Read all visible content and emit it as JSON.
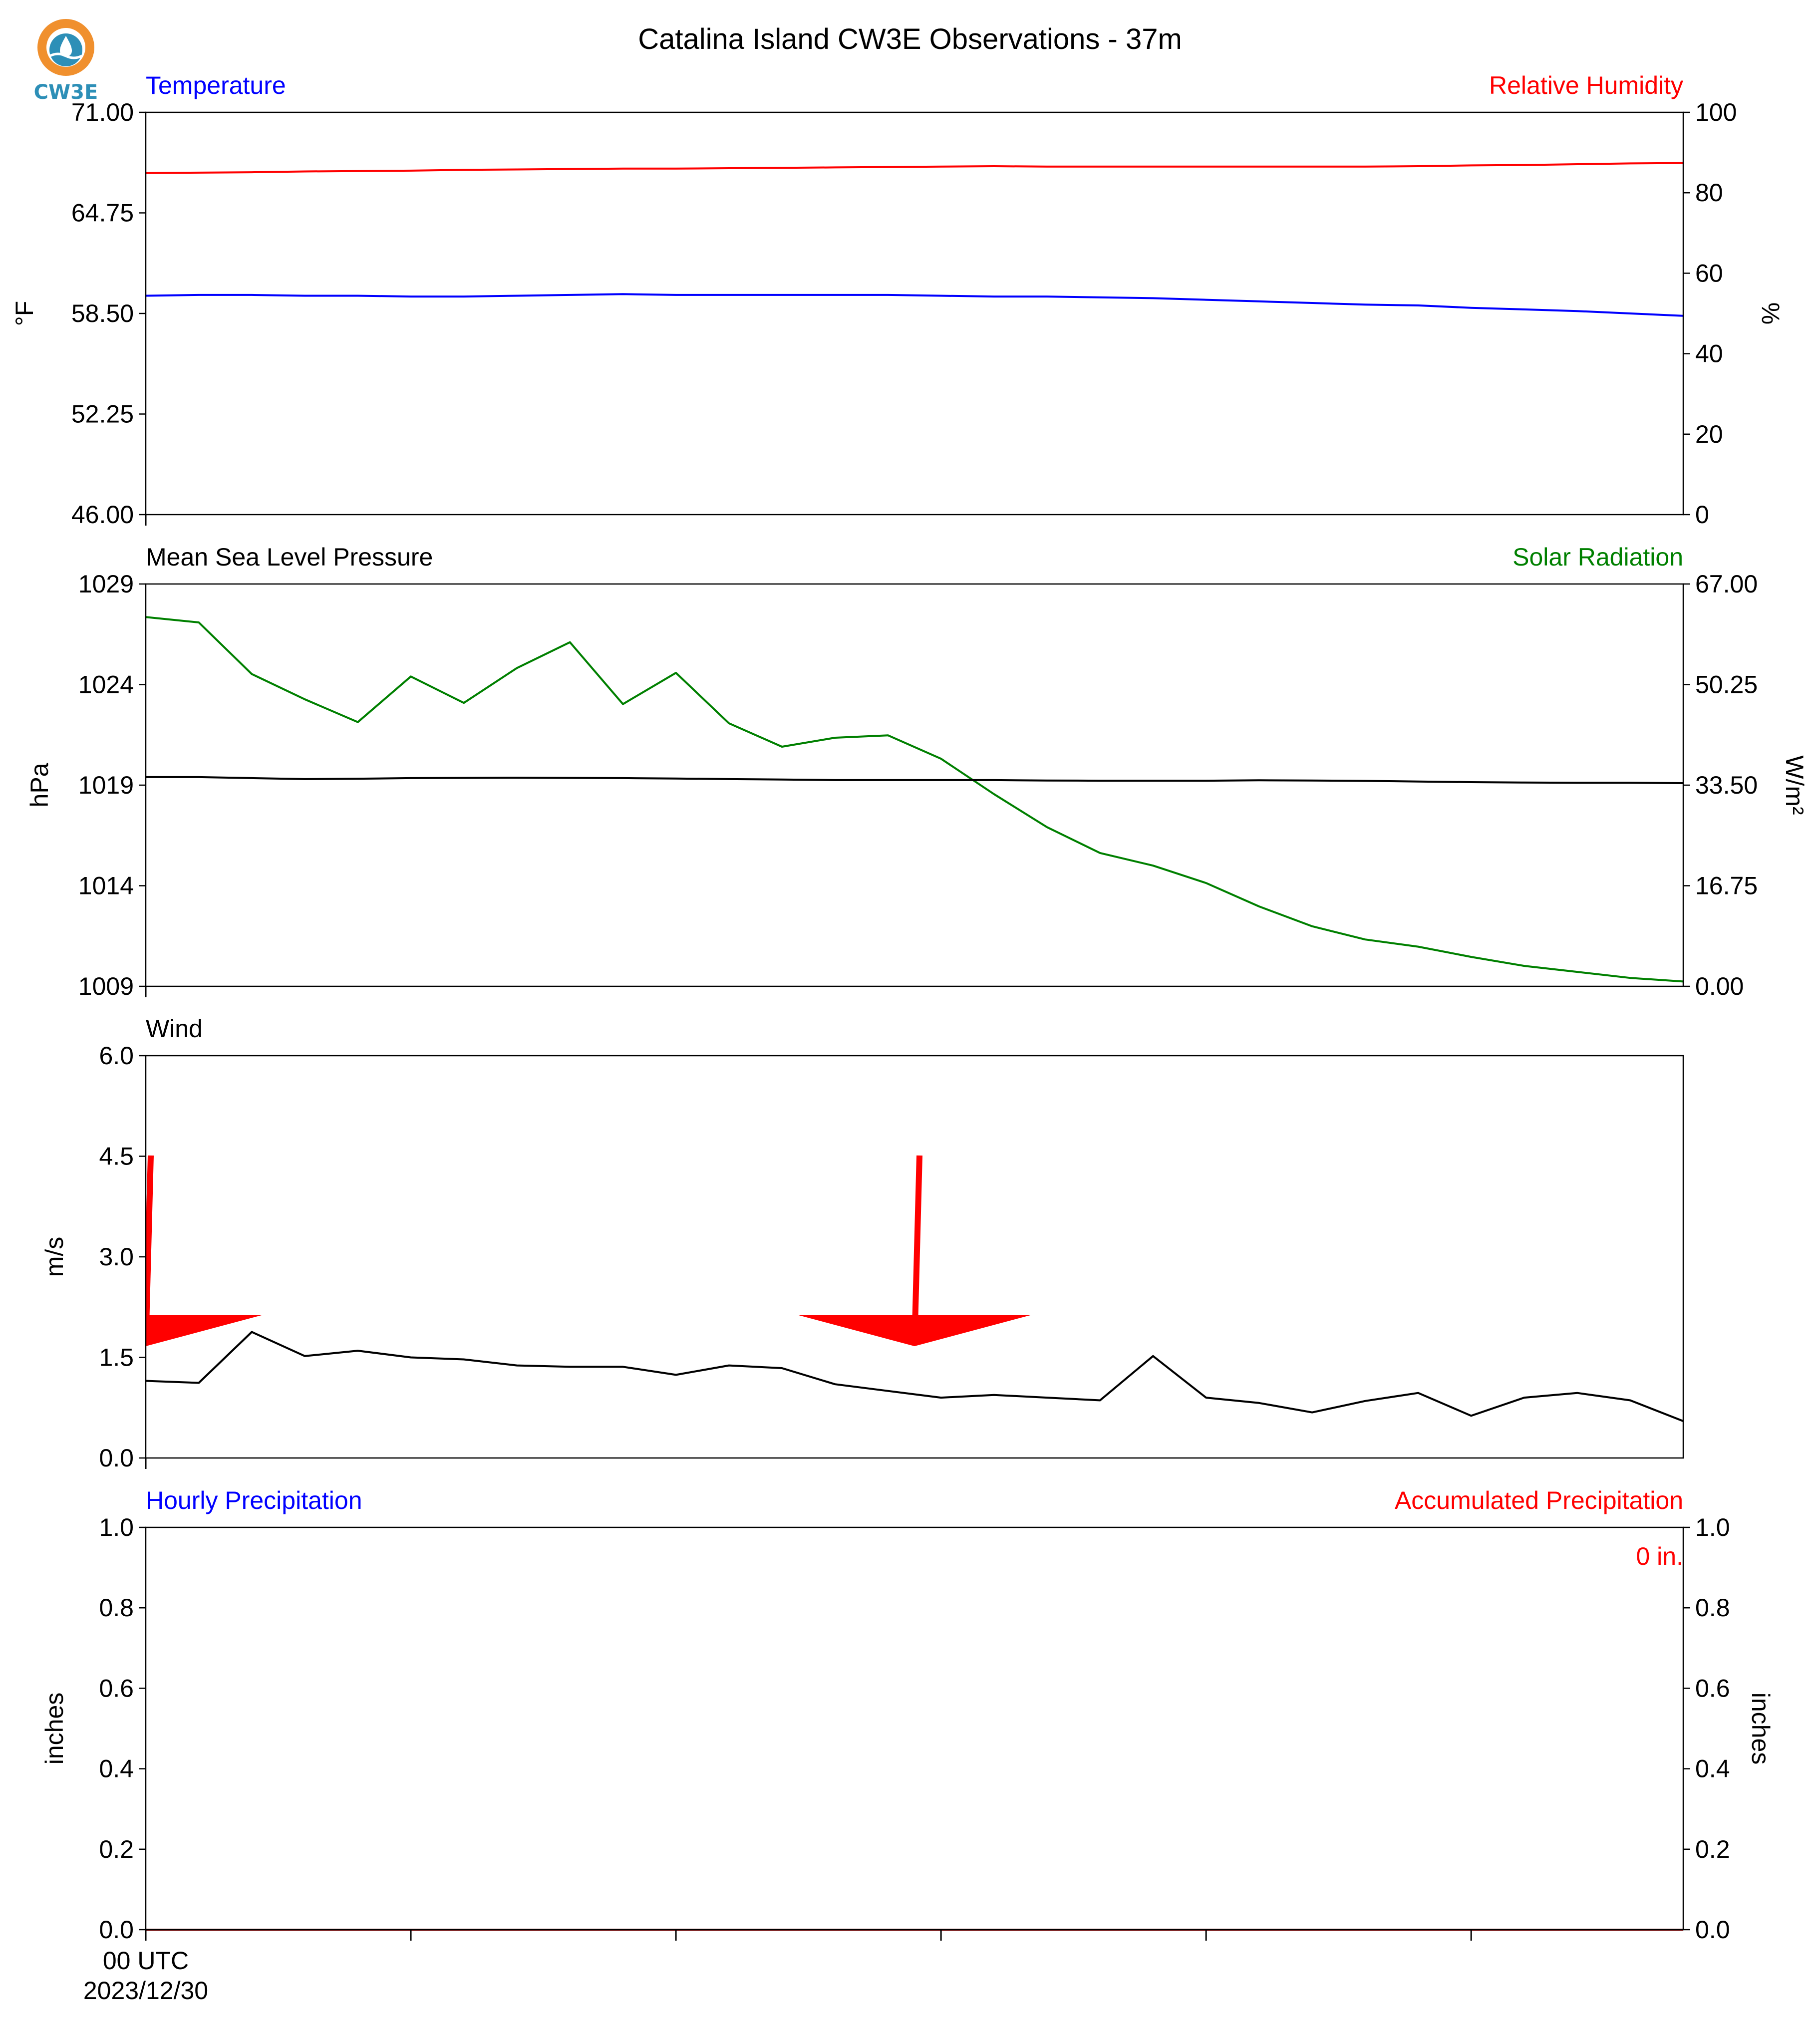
{
  "figure_title": "Catalina Island CW3E Observations - 37m",
  "logo": {
    "text": "CW3E",
    "colors": {
      "ring": "#f0902e",
      "drop": "#2d8fb7",
      "text": "#2d8fb7"
    }
  },
  "colors": {
    "temperature": "#0000ff",
    "humidity": "#ff0000",
    "pressure": "#000000",
    "solar": "#008000",
    "wind": "#000000",
    "barb": "#ff0000",
    "hourly_precip": "#0000ff",
    "accum_precip": "#ff0000"
  },
  "chart_data": [
    {
      "type": "line",
      "left_title": "Temperature",
      "right_title": "Relative Humidity",
      "ylabel": "°F",
      "ylabel_right": "%",
      "ylim": [
        46.0,
        71.0
      ],
      "ylim_right": [
        0,
        100
      ],
      "yticks": [
        "46.00",
        "52.25",
        "58.50",
        "64.75",
        "71.00"
      ],
      "yticks_right": [
        "0",
        "20",
        "40",
        "60",
        "80",
        "100"
      ],
      "x_hours": [
        0,
        0.5,
        1,
        1.5,
        2,
        2.5,
        3,
        3.5,
        4,
        4.5,
        5,
        5.5,
        6,
        6.5,
        7,
        7.5,
        8,
        8.5,
        9,
        9.5,
        10,
        10.5,
        11,
        11.5,
        12,
        12.5,
        13,
        13.5,
        14,
        14.5
      ],
      "series": [
        {
          "name": "Temperature",
          "axis": "left",
          "values": [
            59.6,
            59.65,
            59.65,
            59.6,
            59.6,
            59.55,
            59.55,
            59.6,
            59.65,
            59.7,
            59.65,
            59.65,
            59.65,
            59.65,
            59.65,
            59.6,
            59.55,
            59.55,
            59.5,
            59.45,
            59.35,
            59.25,
            59.15,
            59.05,
            59.0,
            58.85,
            58.75,
            58.65,
            58.5,
            58.35
          ]
        },
        {
          "name": "Relative Humidity",
          "axis": "right",
          "values": [
            84.9,
            85.0,
            85.1,
            85.3,
            85.4,
            85.5,
            85.7,
            85.8,
            85.9,
            86.0,
            86.0,
            86.1,
            86.2,
            86.3,
            86.4,
            86.5,
            86.6,
            86.5,
            86.5,
            86.5,
            86.5,
            86.5,
            86.5,
            86.5,
            86.6,
            86.8,
            86.9,
            87.1,
            87.3,
            87.4
          ]
        }
      ]
    },
    {
      "type": "line",
      "left_title": "Mean Sea Level Pressure",
      "right_title": "Solar Radiation",
      "ylabel": "hPa",
      "ylabel_right": "W/m²",
      "ylim": [
        1009,
        1029
      ],
      "ylim_right": [
        0,
        67.0
      ],
      "yticks": [
        "1009",
        "1014",
        "1019",
        "1024",
        "1029"
      ],
      "yticks_right": [
        "0.00",
        "16.75",
        "33.50",
        "50.25",
        "67.00"
      ],
      "x_hours": [
        0,
        0.5,
        1,
        1.5,
        2,
        2.5,
        3,
        3.5,
        4,
        4.5,
        5,
        5.5,
        6,
        6.5,
        7,
        7.5,
        8,
        8.5,
        9,
        9.5,
        10,
        10.5,
        11,
        11.5,
        12,
        12.5,
        13,
        13.5,
        14,
        14.5
      ],
      "series": [
        {
          "name": "Mean Sea Level Pressure",
          "axis": "left",
          "values": [
            1019.4,
            1019.4,
            1019.35,
            1019.3,
            1019.32,
            1019.35,
            1019.36,
            1019.37,
            1019.36,
            1019.35,
            1019.33,
            1019.3,
            1019.28,
            1019.25,
            1019.25,
            1019.25,
            1019.25,
            1019.23,
            1019.22,
            1019.22,
            1019.22,
            1019.24,
            1019.23,
            1019.21,
            1019.18,
            1019.15,
            1019.13,
            1019.12,
            1019.12,
            1019.1
          ]
        },
        {
          "name": "Solar Radiation",
          "axis": "right",
          "values": [
            61.5,
            60.6,
            52.0,
            47.8,
            44.0,
            51.6,
            47.2,
            53.0,
            57.3,
            47.0,
            52.2,
            43.8,
            39.9,
            41.4,
            41.8,
            37.9,
            32.0,
            26.5,
            22.2,
            20.1,
            17.2,
            13.3,
            10.0,
            7.8,
            6.6,
            4.9,
            3.4,
            2.4,
            1.4,
            0.8
          ]
        }
      ]
    },
    {
      "type": "line",
      "left_title": "Wind",
      "ylabel": "m/s",
      "ylim": [
        0.0,
        6.0
      ],
      "yticks": [
        "0.0",
        "1.5",
        "3.0",
        "4.5",
        "6.0"
      ],
      "x_hours": [
        0,
        0.5,
        1,
        1.5,
        2,
        2.5,
        3,
        3.5,
        4,
        4.5,
        5,
        5.5,
        6,
        6.5,
        7,
        7.5,
        8,
        8.5,
        9,
        9.5,
        10,
        10.5,
        11,
        11.5,
        12,
        12.5,
        13,
        13.5,
        14,
        14.5
      ],
      "series": [
        {
          "name": "Wind Speed",
          "axis": "left",
          "values": [
            1.15,
            1.12,
            1.88,
            1.52,
            1.6,
            1.5,
            1.47,
            1.38,
            1.36,
            1.36,
            1.24,
            1.38,
            1.34,
            1.1,
            1.0,
            0.9,
            0.94,
            0.9,
            0.86,
            1.52,
            0.9,
            0.82,
            0.68,
            0.85,
            0.97,
            0.63,
            0.9,
            0.97,
            0.86,
            0.55
          ]
        }
      ],
      "wind_barbs": [
        {
          "hour": 0,
          "speed_knots": "≥50",
          "direction": "north"
        },
        {
          "hour": 7.25,
          "speed_knots": "≥50",
          "direction": "north"
        }
      ]
    },
    {
      "type": "line",
      "left_title": "Hourly Precipitation",
      "right_title": "Accumulated Precipitation",
      "ylabel": "inches",
      "ylabel_right": "inches",
      "ylim": [
        0.0,
        1.0
      ],
      "ylim_right": [
        0.0,
        1.0
      ],
      "yticks": [
        "0.0",
        "0.2",
        "0.4",
        "0.6",
        "0.8",
        "1.0"
      ],
      "yticks_right": [
        "0.0",
        "0.2",
        "0.4",
        "0.6",
        "0.8",
        "1.0"
      ],
      "annotation": "0 in.",
      "series": [
        {
          "name": "Hourly Precipitation",
          "axis": "left",
          "values": [
            0,
            0
          ]
        },
        {
          "name": "Accumulated Precipitation",
          "axis": "right",
          "values": [
            0,
            0
          ]
        }
      ],
      "x_range_hours": [
        0,
        14.5
      ],
      "xticks_hours": [
        0,
        2.5,
        5,
        7.5,
        10,
        12.5
      ],
      "xtick_label_line1": "00 UTC",
      "xtick_label_line2": "2023/12/30"
    }
  ]
}
